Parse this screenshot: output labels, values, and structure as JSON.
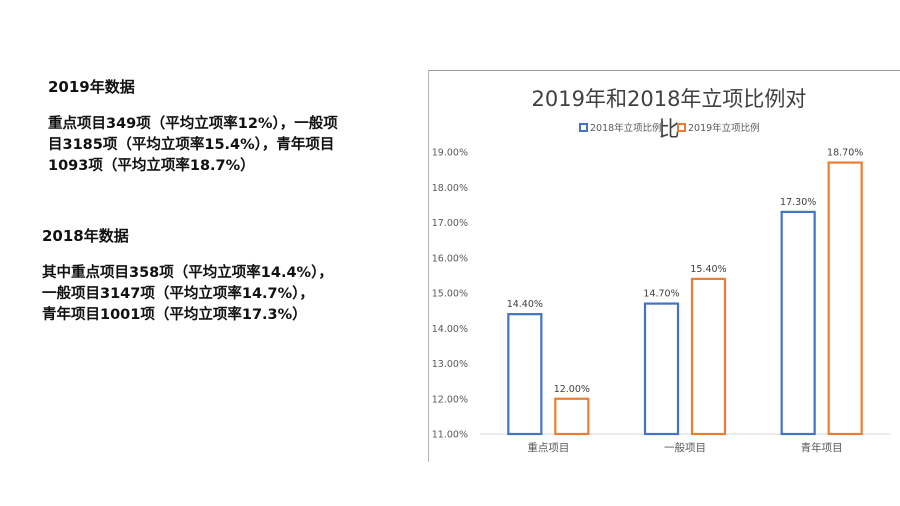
{
  "left_panel": {
    "heading_2019": "2019年数据",
    "para_2019": [
      "重点项目349项（平均立项率12%），一般项",
      "目3185项（平均立项率15.4%），青年项目",
      "1093项（平均立项率18.7%）"
    ],
    "heading_2018": "2018年数据",
    "para_2018": [
      "其中重点项目358项（平均立项率14.4%），",
      "一般项目3147项（平均立项率14.7%），",
      "青年项目1001项（平均立项率17.3%）"
    ]
  },
  "chart_data": {
    "type": "bar",
    "title": "2019年和2018年立项比例对比",
    "categories": [
      "重点项目",
      "一般项目",
      "青年项目"
    ],
    "series": [
      {
        "name": "2018年立项比例",
        "values": [
          14.4,
          14.7,
          17.3
        ],
        "labels": [
          "14.40%",
          "14.70%",
          "17.30%"
        ],
        "color": "#4472C4"
      },
      {
        "name": "2019年立项比例",
        "values": [
          12.0,
          15.4,
          18.7
        ],
        "labels": [
          "12.00%",
          "15.40%",
          "18.70%"
        ],
        "color": "#ED7D31"
      }
    ],
    "ylim": [
      11,
      19
    ],
    "yticks": [
      "11.00%",
      "12.00%",
      "13.00%",
      "14.00%",
      "15.00%",
      "16.00%",
      "17.00%",
      "18.00%",
      "19.00%"
    ],
    "legend_position": "top-left",
    "grid": false,
    "bar_style": "outlined"
  }
}
